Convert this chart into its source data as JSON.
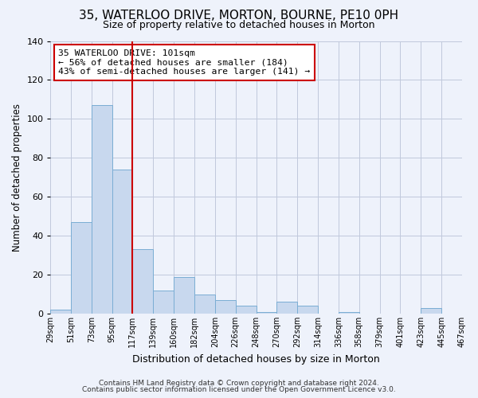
{
  "title": "35, WATERLOO DRIVE, MORTON, BOURNE, PE10 0PH",
  "subtitle": "Size of property relative to detached houses in Morton",
  "xlabel": "Distribution of detached houses by size in Morton",
  "ylabel": "Number of detached properties",
  "bar_values": [
    2,
    47,
    107,
    74,
    33,
    12,
    19,
    10,
    7,
    4,
    1,
    6,
    4,
    0,
    1,
    0,
    0,
    0,
    3,
    0
  ],
  "bin_labels": [
    "29sqm",
    "51sqm",
    "73sqm",
    "95sqm",
    "117sqm",
    "139sqm",
    "160sqm",
    "182sqm",
    "204sqm",
    "226sqm",
    "248sqm",
    "270sqm",
    "292sqm",
    "314sqm",
    "336sqm",
    "358sqm",
    "379sqm",
    "401sqm",
    "423sqm",
    "445sqm",
    "467sqm"
  ],
  "bar_color": "#c8d8ee",
  "bar_edge_color": "#7aadd4",
  "ylim": [
    0,
    140
  ],
  "yticks": [
    0,
    20,
    40,
    60,
    80,
    100,
    120,
    140
  ],
  "vline_color": "#cc0000",
  "annotation_text": "35 WATERLOO DRIVE: 101sqm\n← 56% of detached houses are smaller (184)\n43% of semi-detached houses are larger (141) →",
  "annotation_box_color": "#ffffff",
  "annotation_box_edge": "#cc0000",
  "footer1": "Contains HM Land Registry data © Crown copyright and database right 2024.",
  "footer2": "Contains public sector information licensed under the Open Government Licence v3.0.",
  "background_color": "#eef2fb",
  "plot_bg_color": "#eef2fb"
}
